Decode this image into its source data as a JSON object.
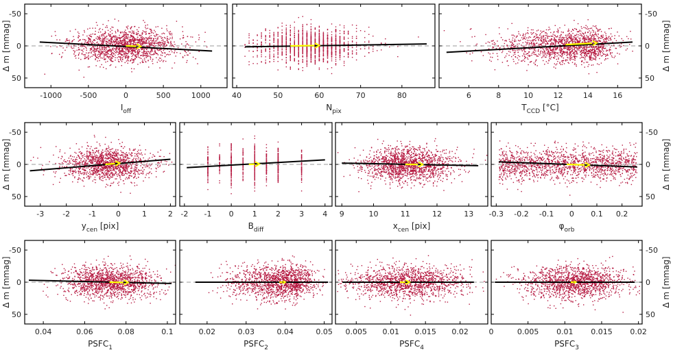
{
  "colors": {
    "points": "#b5173f",
    "trend": "#000000",
    "arrow": "#ffff00",
    "zero_line": "#999999"
  },
  "ylabel": {
    "main": "Δ m [mmag]"
  },
  "chart_data": [
    {
      "id": "ioff",
      "type": "scatter",
      "xlabel": {
        "main": "I",
        "sub": "off",
        "suffix": ""
      },
      "xlim": [
        -1350,
        1350
      ],
      "ylim": [
        -65,
        65
      ],
      "y_inverted": true,
      "xticks": [
        -1000,
        -500,
        0,
        500,
        1000
      ],
      "xticklabels": [
        "-1000",
        "-500",
        "0",
        "500",
        "1000"
      ],
      "yticks": [
        -50,
        0,
        50
      ],
      "yticklabels": [
        "-50",
        "0",
        "50"
      ],
      "cloud": {
        "type": "gauss",
        "mean": 0,
        "sd": 350,
        "n": 1600,
        "ysd": 13,
        "seed": 11
      },
      "trend": {
        "x": [
          -1150,
          1150
        ],
        "y": [
          -6,
          8
        ]
      },
      "arrow": {
        "x": [
          0,
          200
        ],
        "y": [
          0,
          0.8
        ]
      }
    },
    {
      "id": "npix",
      "type": "scatter",
      "xlabel": {
        "main": "N",
        "sub": "pix",
        "suffix": ""
      },
      "xlim": [
        39,
        88
      ],
      "ylim": [
        -65,
        65
      ],
      "y_inverted": true,
      "xticks": [
        40,
        50,
        60,
        70,
        80
      ],
      "xticklabels": [
        "40",
        "50",
        "60",
        "70",
        "80"
      ],
      "yticks": [
        -50,
        0,
        50
      ],
      "yticklabels": [
        "-50",
        "0",
        "50"
      ],
      "cloud": {
        "type": "discrete",
        "mean": 57,
        "sd": 8,
        "step": 1,
        "min": 42,
        "max": 85,
        "n": 1500,
        "ysd": 13,
        "seed": 12
      },
      "trend": {
        "x": [
          42,
          86
        ],
        "y": [
          1.5,
          -3
        ]
      },
      "arrow": {
        "x": [
          53,
          60
        ],
        "y": [
          0,
          -0.6
        ]
      }
    },
    {
      "id": "tccd",
      "type": "scatter",
      "xlabel": {
        "main": "T",
        "sub": "CCD",
        "suffix": " [°C]"
      },
      "xlim": [
        4,
        17.6
      ],
      "ylim": [
        -65,
        65
      ],
      "y_inverted": true,
      "xticks": [
        6,
        8,
        10,
        12,
        14,
        16
      ],
      "xticklabels": [
        "6",
        "8",
        "10",
        "12",
        "14",
        "16"
      ],
      "yticks": [
        -50,
        0,
        50
      ],
      "yticklabels": [
        "-50",
        "0",
        "50"
      ],
      "cloud": {
        "type": "skew",
        "mean": 13.5,
        "sd": 2.2,
        "min": 4.3,
        "max": 17.3,
        "n": 1600,
        "ysd": 13,
        "seed": 13
      },
      "trend": {
        "x": [
          4.5,
          17
        ],
        "y": [
          10,
          -6
        ]
      },
      "arrow": {
        "x": [
          12.5,
          14.6
        ],
        "y": [
          -2,
          -4.5
        ]
      }
    },
    {
      "id": "ycen",
      "type": "scatter",
      "xlabel": {
        "main": "y",
        "sub": "cen",
        "suffix": " [pix]"
      },
      "xlim": [
        -3.6,
        2.2
      ],
      "ylim": [
        -65,
        65
      ],
      "y_inverted": true,
      "xticks": [
        -3,
        -2,
        -1,
        0,
        1,
        2
      ],
      "xticklabels": [
        "-3",
        "-2",
        "-1",
        "0",
        "1",
        "2"
      ],
      "yticks": [
        -50,
        0,
        50
      ],
      "yticklabels": [
        "-50",
        "0",
        "50"
      ],
      "cloud": {
        "type": "gauss",
        "mean": -0.4,
        "sd": 0.85,
        "n": 1400,
        "ysd": 13,
        "seed": 14
      },
      "trend": {
        "x": [
          -3.4,
          2
        ],
        "y": [
          10,
          -8
        ]
      },
      "arrow": {
        "x": [
          -0.5,
          0.05
        ],
        "y": [
          0,
          -2
        ]
      }
    },
    {
      "id": "bdiff",
      "type": "scatter",
      "xlabel": {
        "main": "B",
        "sub": "diff",
        "suffix": ""
      },
      "xlim": [
        -2.2,
        4.3
      ],
      "ylim": [
        -65,
        65
      ],
      "y_inverted": true,
      "xticks": [
        -2,
        -1,
        0,
        1,
        2,
        3,
        4
      ],
      "xticklabels": [
        "-2",
        "-1",
        "0",
        "1",
        "2",
        "3",
        "4"
      ],
      "yticks": [
        -50,
        0,
        50
      ],
      "yticklabels": [
        "-50",
        "0",
        "50"
      ],
      "cloud": {
        "type": "columns",
        "cols": [
          -1,
          -0.5,
          0,
          0.5,
          1,
          1.5,
          2,
          3
        ],
        "weights": [
          2,
          1,
          3,
          2,
          4,
          2,
          3,
          2
        ],
        "n": 700,
        "ysd": 14,
        "seed": 15
      },
      "trend": {
        "x": [
          -1.9,
          4
        ],
        "y": [
          5,
          -7
        ]
      },
      "arrow": {
        "x": [
          0.75,
          1.2
        ],
        "y": [
          0,
          -0.5
        ]
      }
    },
    {
      "id": "xcen",
      "type": "scatter",
      "xlabel": {
        "main": "x",
        "sub": "cen",
        "suffix": " [pix]"
      },
      "xlim": [
        8.8,
        13.6
      ],
      "ylim": [
        -65,
        65
      ],
      "y_inverted": true,
      "xticks": [
        9,
        10,
        11,
        12,
        13
      ],
      "xticklabels": [
        "9",
        "10",
        "11",
        "12",
        "13"
      ],
      "yticks": [
        -50,
        0,
        50
      ],
      "yticklabels": [
        "-50",
        "0",
        "50"
      ],
      "cloud": {
        "type": "gauss",
        "mean": 11.1,
        "sd": 0.75,
        "n": 1500,
        "ysd": 13,
        "seed": 16
      },
      "trend": {
        "x": [
          9,
          13.3
        ],
        "y": [
          -2,
          2
        ]
      },
      "arrow": {
        "x": [
          11,
          11.55
        ],
        "y": [
          0,
          0.2
        ]
      }
    },
    {
      "id": "phiorb",
      "type": "scatter",
      "xlabel": {
        "main": "φ",
        "sub": "orb",
        "suffix": ""
      },
      "xlim": [
        -0.32,
        0.28
      ],
      "ylim": [
        -65,
        65
      ],
      "y_inverted": true,
      "xticks": [
        -0.3,
        -0.2,
        -0.1,
        0,
        0.1,
        0.2
      ],
      "xticklabels": [
        "-0.3",
        "-0.2",
        "-0.1",
        "0",
        "0.1",
        "0.2"
      ],
      "yticks": [
        -50,
        0,
        50
      ],
      "yticklabels": [
        "-50",
        "0",
        "50"
      ],
      "cloud": {
        "type": "uniform",
        "min": -0.29,
        "max": 0.26,
        "n": 1500,
        "ysd": 13,
        "seed": 17
      },
      "trend": {
        "x": [
          -0.29,
          0.26
        ],
        "y": [
          -4,
          4
        ]
      },
      "arrow": {
        "x": [
          -0.02,
          0.07
        ],
        "y": [
          0,
          1
        ]
      }
    },
    {
      "id": "psfc1",
      "type": "scatter",
      "xlabel": {
        "main": "PSFC",
        "sub": "1",
        "suffix": ""
      },
      "xlim": [
        0.031,
        0.104
      ],
      "ylim": [
        -65,
        65
      ],
      "y_inverted": true,
      "xticks": [
        0.04,
        0.06,
        0.08,
        0.1
      ],
      "xticklabels": [
        "0.04",
        "0.06",
        "0.08",
        "0.1"
      ],
      "yticks": [
        -50,
        0,
        50
      ],
      "yticklabels": [
        "-50",
        "0",
        "50"
      ],
      "cloud": {
        "type": "gauss",
        "mean": 0.072,
        "sd": 0.011,
        "n": 1400,
        "ysd": 13,
        "seed": 18
      },
      "trend": {
        "x": [
          0.033,
          0.102
        ],
        "y": [
          -3,
          2
        ]
      },
      "arrow": {
        "x": [
          0.072,
          0.081
        ],
        "y": [
          0,
          0.5
        ]
      }
    },
    {
      "id": "psfc2",
      "type": "scatter",
      "xlabel": {
        "main": "PSFC",
        "sub": "2",
        "suffix": ""
      },
      "xlim": [
        0.013,
        0.052
      ],
      "ylim": [
        -65,
        65
      ],
      "y_inverted": true,
      "xticks": [
        0.02,
        0.03,
        0.04,
        0.05
      ],
      "xticklabels": [
        "0.02",
        "0.03",
        "0.04",
        "0.05"
      ],
      "yticks": [
        -50,
        0,
        50
      ],
      "yticklabels": [
        "-50",
        "0",
        "50"
      ],
      "cloud": {
        "type": "skew",
        "mean": 0.041,
        "sd": 0.006,
        "min": 0.02,
        "max": 0.0505,
        "n": 1400,
        "ysd": 13,
        "seed": 19
      },
      "trend": {
        "x": [
          0.017,
          0.051
        ],
        "y": [
          0,
          0
        ]
      },
      "arrow": {
        "x": [
          0.0385,
          0.04
        ],
        "y": [
          0,
          0
        ]
      }
    },
    {
      "id": "psfc4",
      "type": "scatter",
      "xlabel": {
        "main": "PSFC",
        "sub": "4",
        "suffix": ""
      },
      "xlim": [
        0.002,
        0.024
      ],
      "ylim": [
        -65,
        65
      ],
      "y_inverted": true,
      "xticks": [
        0.005,
        0.01,
        0.015,
        0.02
      ],
      "xticklabels": [
        "0.005",
        "0.01",
        "0.015",
        "0.02"
      ],
      "yticks": [
        -50,
        0,
        50
      ],
      "yticklabels": [
        "-50",
        "0",
        "50"
      ],
      "cloud": {
        "type": "gauss",
        "mean": 0.0125,
        "sd": 0.0042,
        "n": 1400,
        "ysd": 13,
        "seed": 20
      },
      "trend": {
        "x": [
          0.003,
          0.022
        ],
        "y": [
          0,
          0
        ]
      },
      "arrow": {
        "x": [
          0.0113,
          0.0127
        ],
        "y": [
          0,
          0
        ]
      }
    },
    {
      "id": "psfc3",
      "type": "scatter",
      "xlabel": {
        "main": "PSFC",
        "sub": "3",
        "suffix": ""
      },
      "xlim": [
        0,
        0.0205
      ],
      "ylim": [
        -65,
        65
      ],
      "y_inverted": true,
      "xticks": [
        0,
        0.005,
        0.01,
        0.015,
        0.02
      ],
      "xticklabels": [
        "0",
        "0.005",
        "0.01",
        "0.015",
        "0.02"
      ],
      "yticks": [
        -50,
        0,
        50
      ],
      "yticklabels": [
        "-50",
        "0",
        "50"
      ],
      "cloud": {
        "type": "gauss",
        "mean": 0.0115,
        "sd": 0.0035,
        "n": 1400,
        "ysd": 13,
        "seed": 21
      },
      "trend": {
        "x": [
          0.0005,
          0.0195
        ],
        "y": [
          0,
          0
        ]
      },
      "arrow": {
        "x": [
          0.0108,
          0.0115
        ],
        "y": [
          0,
          0
        ]
      }
    }
  ]
}
